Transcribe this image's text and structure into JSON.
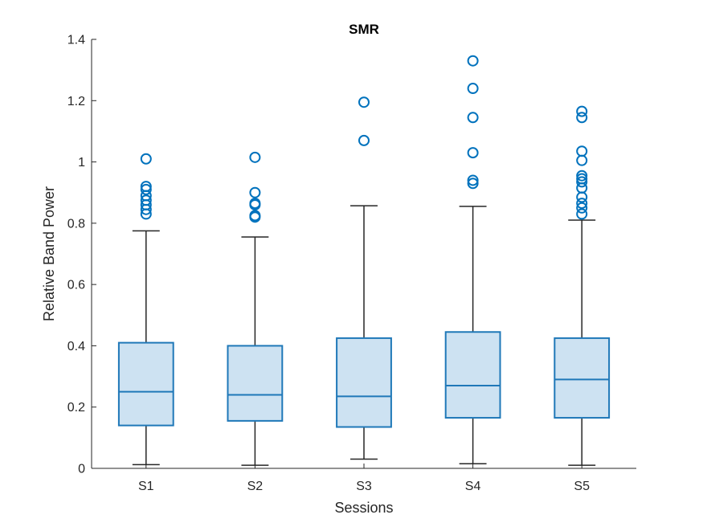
{
  "chart_data": {
    "type": "box",
    "title": "SMR",
    "xlabel": "Sessions",
    "ylabel": "Relative Band Power",
    "ylim": [
      0,
      1.4
    ],
    "yticks": [
      0,
      0.2,
      0.4,
      0.6,
      0.8,
      1,
      1.2,
      1.4
    ],
    "ytick_labels": [
      "0",
      "0.2",
      "0.4",
      "0.6",
      "0.8",
      "1",
      "1.2",
      "1.4"
    ],
    "categories": [
      "S1",
      "S2",
      "S3",
      "S4",
      "S5"
    ],
    "boxes": [
      {
        "category": "S1",
        "whisker_low": 0.012,
        "q1": 0.14,
        "median": 0.25,
        "q3": 0.41,
        "whisker_high": 0.775,
        "outliers": [
          0.83,
          0.845,
          0.86,
          0.875,
          0.89,
          0.91,
          0.92,
          1.01
        ]
      },
      {
        "category": "S2",
        "whisker_low": 0.01,
        "q1": 0.155,
        "median": 0.24,
        "q3": 0.4,
        "whisker_high": 0.755,
        "outliers": [
          0.82,
          0.825,
          0.86,
          0.865,
          0.9,
          1.015
        ]
      },
      {
        "category": "S3",
        "whisker_low": 0.03,
        "q1": 0.135,
        "median": 0.235,
        "q3": 0.425,
        "whisker_high": 0.857,
        "outliers": [
          1.07,
          1.195
        ]
      },
      {
        "category": "S4",
        "whisker_low": 0.015,
        "q1": 0.165,
        "median": 0.27,
        "q3": 0.445,
        "whisker_high": 0.855,
        "outliers": [
          0.93,
          0.94,
          1.03,
          1.145,
          1.24,
          1.33
        ]
      },
      {
        "category": "S5",
        "whisker_low": 0.01,
        "q1": 0.165,
        "median": 0.29,
        "q3": 0.425,
        "whisker_high": 0.81,
        "outliers": [
          0.83,
          0.85,
          0.865,
          0.885,
          0.915,
          0.935,
          0.945,
          0.955,
          1.005,
          1.035,
          1.145,
          1.165
        ]
      }
    ],
    "colors": {
      "box_fill": "#cde2f2",
      "box_edge": "#1f78b8",
      "outlier": "#0072bd",
      "whisker": "#262626"
    },
    "grid": false,
    "legend": "none"
  }
}
